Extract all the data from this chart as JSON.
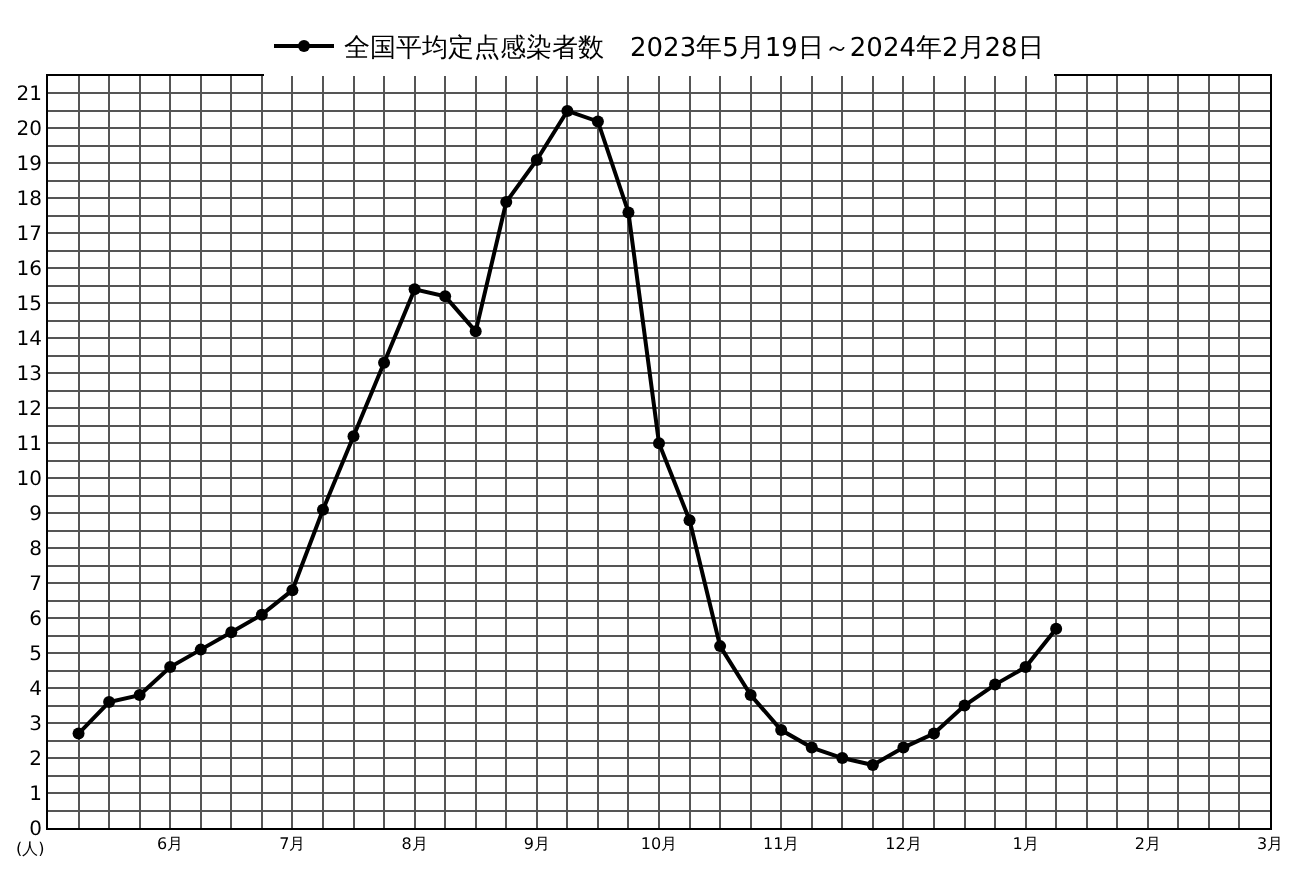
{
  "chart_data": {
    "type": "line",
    "ylabel": "(人)",
    "legend": "top",
    "categories": [
      null,
      null,
      null,
      "6月",
      null,
      null,
      null,
      "7月",
      null,
      null,
      null,
      "8月",
      null,
      null,
      null,
      "9月",
      null,
      null,
      null,
      "10月",
      null,
      null,
      null,
      "11月",
      null,
      null,
      null,
      "12月",
      null,
      null,
      null,
      "1月",
      null,
      null,
      null,
      "2月",
      null,
      null,
      null,
      "3月"
    ],
    "series": [
      {
        "name": "全国平均定点感染者数　2023年5月19日～2024年2月28日",
        "color": "#000000",
        "values": [
          2.7,
          3.6,
          3.8,
          4.6,
          5.1,
          5.6,
          6.1,
          6.8,
          9.1,
          11.2,
          13.3,
          15.4,
          15.2,
          14.2,
          17.9,
          19.1,
          20.5,
          20.2,
          17.6,
          11.0,
          8.8,
          5.2,
          3.8,
          2.8,
          2.3,
          2.0,
          1.8,
          2.3,
          2.7,
          3.5,
          4.1,
          4.6,
          5.7,
          null,
          null,
          null,
          null,
          null,
          null,
          null
        ]
      }
    ],
    "marker": "circle",
    "line_style": "solid",
    "grid": true,
    "ylim": [
      0,
      21.5
    ],
    "yticks": [
      0,
      {
        "value": 0.5,
        "label": null
      },
      1,
      {
        "value": 1.5,
        "label": null
      },
      2,
      {
        "value": 2.5,
        "label": null
      },
      3,
      {
        "value": 3.5,
        "label": null
      },
      4,
      {
        "value": 4.5,
        "label": null
      },
      5,
      {
        "value": 5.5,
        "label": null
      },
      6,
      {
        "value": 6.5,
        "label": null
      },
      7,
      {
        "value": 7.5,
        "label": null
      },
      8,
      {
        "value": 8.5,
        "label": null
      },
      9,
      {
        "value": 9.5,
        "label": null
      },
      10,
      {
        "value": 10.5,
        "label": null
      },
      11,
      {
        "value": 11.5,
        "label": null
      },
      12,
      {
        "value": 12.5,
        "label": null
      },
      13,
      {
        "value": 13.5,
        "label": null
      },
      14,
      {
        "value": 14.5,
        "label": null
      },
      15,
      {
        "value": 15.5,
        "label": null
      },
      16,
      {
        "value": 16.5,
        "label": null
      },
      17,
      {
        "value": 17.5,
        "label": null
      },
      18,
      {
        "value": 18.5,
        "label": null
      },
      19,
      {
        "value": 19.5,
        "label": null
      },
      20,
      {
        "value": 20.5,
        "label": null
      },
      21,
      {
        "value": 21.5,
        "label": null
      }
    ]
  }
}
